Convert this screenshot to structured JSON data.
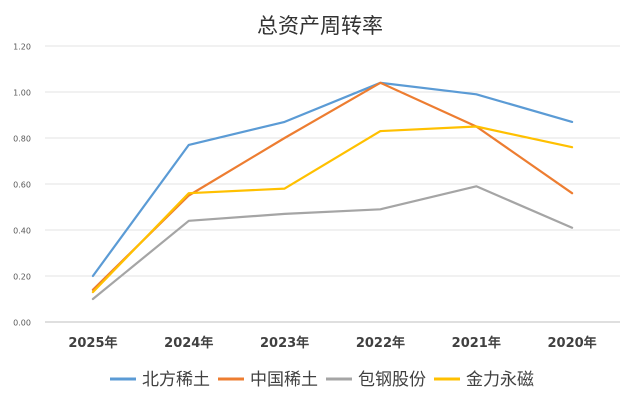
{
  "chart_data": {
    "type": "line",
    "title": "总资产周转率",
    "categories": [
      "2025年",
      "2024年",
      "2023年",
      "2022年",
      "2021年",
      "2020年"
    ],
    "ylim": [
      0,
      1.2
    ],
    "yticks": [
      "0.00",
      "0.20",
      "0.40",
      "0.60",
      "0.80",
      "1.00",
      "1.20"
    ],
    "grid": true,
    "legend_position": "bottom",
    "series": [
      {
        "name": "北方稀土",
        "color": "#5B9BD5",
        "values": [
          0.2,
          0.77,
          0.87,
          1.04,
          0.99,
          0.87
        ]
      },
      {
        "name": "中国稀土",
        "color": "#ED7D31",
        "values": [
          0.14,
          0.55,
          0.8,
          1.04,
          0.85,
          0.56
        ]
      },
      {
        "name": "包钢股份",
        "color": "#A5A5A5",
        "values": [
          0.1,
          0.44,
          0.47,
          0.49,
          0.59,
          0.41
        ]
      },
      {
        "name": "金力永磁",
        "color": "#FFC000",
        "values": [
          0.13,
          0.56,
          0.58,
          0.83,
          0.85,
          0.76
        ]
      }
    ]
  }
}
